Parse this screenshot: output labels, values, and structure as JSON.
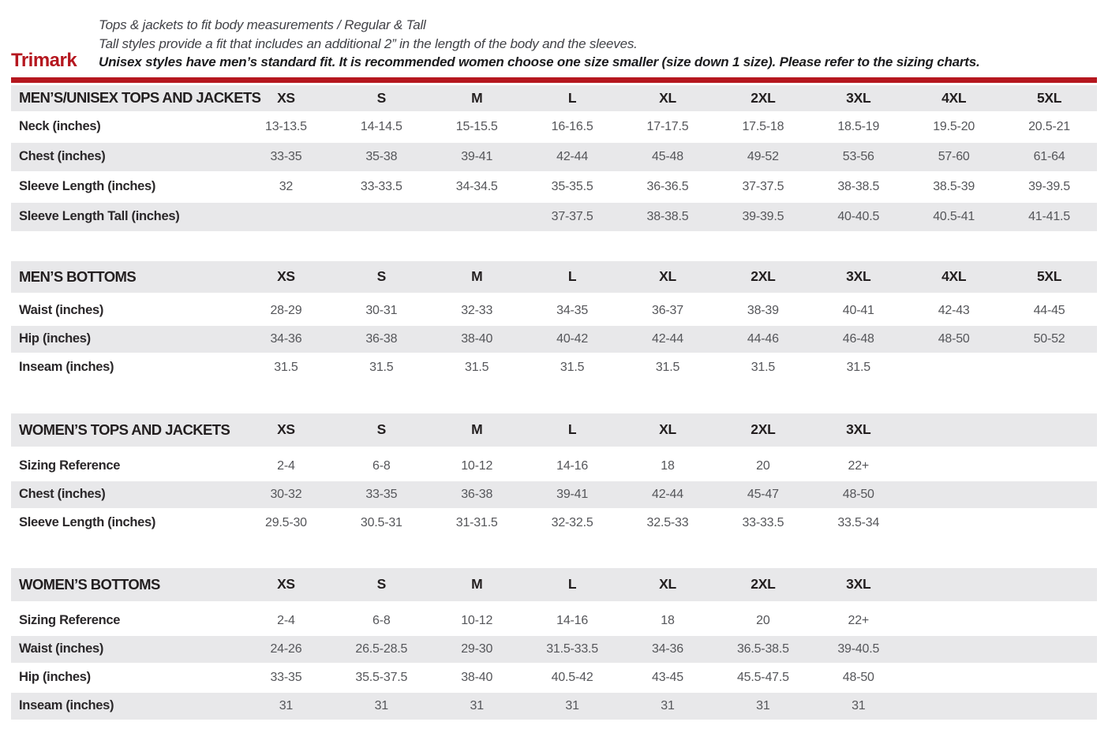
{
  "header": {
    "brand": "Trimark",
    "line1": "Tops & jackets to fit body measurements / Regular & Tall",
    "line2": "Tall styles provide a fit that includes an additional 2” in the length of the body and the sleeves.",
    "line3": "Unisex styles have men’s standard fit. It is recommended women choose one size smaller (size down 1 size).  Please refer to the sizing charts."
  },
  "colors": {
    "brand_red": "#b5171f",
    "row_gray": "#e8e8ea",
    "label_ink": "#231f20",
    "value_gray": "#55565a"
  },
  "tables": [
    {
      "title": "MEN’S/UNISEX TOPS AND JACKETS",
      "sizes": [
        "XS",
        "S",
        "M",
        "L",
        "XL",
        "2XL",
        "3XL",
        "4XL",
        "5XL"
      ],
      "rows": [
        {
          "label": "Neck (inches)",
          "values": [
            "13-13.5",
            "14-14.5",
            "15-15.5",
            "16-16.5",
            "17-17.5",
            "17.5-18",
            "18.5-19",
            "19.5-20",
            "20.5-21"
          ]
        },
        {
          "label": "Chest (inches)",
          "values": [
            "33-35",
            "35-38",
            "39-41",
            "42-44",
            "45-48",
            "49-52",
            "53-56",
            "57-60",
            "61-64"
          ]
        },
        {
          "label": "Sleeve Length (inches)",
          "values": [
            "32",
            "33-33.5",
            "34-34.5",
            "35-35.5",
            "36-36.5",
            "37-37.5",
            "38-38.5",
            "38.5-39",
            "39-39.5"
          ]
        },
        {
          "label": "Sleeve Length Tall (inches)",
          "values": [
            "",
            "",
            "",
            "37-37.5",
            "38-38.5",
            "39-39.5",
            "40-40.5",
            "40.5-41",
            "41-41.5"
          ]
        }
      ]
    },
    {
      "title": "MEN’S BOTTOMS",
      "sizes": [
        "XS",
        "S",
        "M",
        "L",
        "XL",
        "2XL",
        "3XL",
        "4XL",
        "5XL"
      ],
      "rows": [
        {
          "label": "Waist (inches)",
          "values": [
            "28-29",
            "30-31",
            "32-33",
            "34-35",
            "36-37",
            "38-39",
            "40-41",
            "42-43",
            "44-45"
          ]
        },
        {
          "label": "Hip (inches)",
          "values": [
            "34-36",
            "36-38",
            "38-40",
            "40-42",
            "42-44",
            "44-46",
            "46-48",
            "48-50",
            "50-52"
          ]
        },
        {
          "label": "Inseam (inches)",
          "values": [
            "31.5",
            "31.5",
            "31.5",
            "31.5",
            "31.5",
            "31.5",
            "31.5",
            "",
            ""
          ]
        }
      ]
    },
    {
      "title": "WOMEN’S TOPS AND JACKETS",
      "sizes": [
        "XS",
        "S",
        "M",
        "L",
        "XL",
        "2XL",
        "3XL",
        "",
        ""
      ],
      "rows": [
        {
          "label": "Sizing Reference",
          "values": [
            "2-4",
            "6-8",
            "10-12",
            "14-16",
            "18",
            "20",
            "22+",
            "",
            ""
          ]
        },
        {
          "label": "Chest (inches)",
          "values": [
            "30-32",
            "33-35",
            "36-38",
            "39-41",
            "42-44",
            "45-47",
            "48-50",
            "",
            ""
          ]
        },
        {
          "label": "Sleeve Length (inches)",
          "values": [
            "29.5-30",
            "30.5-31",
            "31-31.5",
            "32-32.5",
            "32.5-33",
            "33-33.5",
            "33.5-34",
            "",
            ""
          ]
        }
      ]
    },
    {
      "title": "WOMEN’S BOTTOMS",
      "sizes": [
        "XS",
        "S",
        "M",
        "L",
        "XL",
        "2XL",
        "3XL",
        "",
        ""
      ],
      "rows": [
        {
          "label": "Sizing Reference",
          "values": [
            "2-4",
            "6-8",
            "10-12",
            "14-16",
            "18",
            "20",
            "22+",
            "",
            ""
          ]
        },
        {
          "label": "Waist (inches)",
          "values": [
            "24-26",
            "26.5-28.5",
            "29-30",
            "31.5-33.5",
            "34-36",
            "36.5-38.5",
            "39-40.5",
            "",
            ""
          ]
        },
        {
          "label": "Hip (inches)",
          "values": [
            "33-35",
            "35.5-37.5",
            "38-40",
            "40.5-42",
            "43-45",
            "45.5-47.5",
            "48-50",
            "",
            ""
          ]
        },
        {
          "label": "Inseam (inches)",
          "values": [
            "31",
            "31",
            "31",
            "31",
            "31",
            "31",
            "31",
            "",
            ""
          ]
        }
      ]
    }
  ]
}
